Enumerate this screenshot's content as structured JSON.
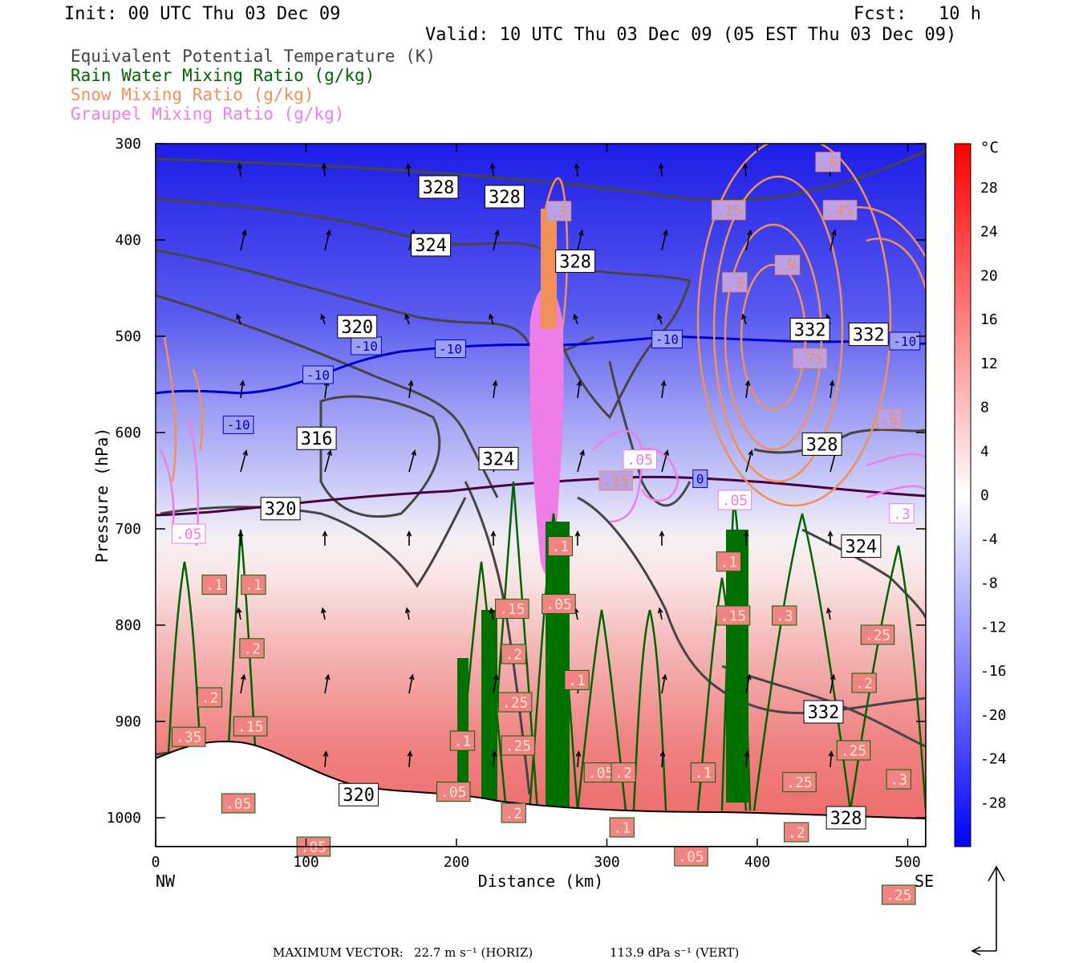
{
  "header": {
    "init": "Init: 00 UTC Thu 03 Dec 09",
    "fcst": "Fcst:   10 h",
    "valid": "Valid: 10 UTC Thu 03 Dec 09 (05 EST Thu 03 Dec 09)"
  },
  "legend": [
    {
      "text": "Equivalent Potential Temperature (K)",
      "color": "#444444"
    },
    {
      "text": "Rain Water Mixing Ratio (g/kg)",
      "color": "#006400"
    },
    {
      "text": "Snow Mixing Ratio (g/kg)",
      "color": "#f0905a"
    },
    {
      "text": "Graupel Mixing Ratio (g/kg)",
      "color": "#ee7ee8"
    }
  ],
  "chart_data": {
    "type": "heatmap",
    "xlabel": "Distance (km)",
    "ylabel": "Pressure (hPa)",
    "x_ticks": [
      0,
      100,
      200,
      300,
      400,
      500
    ],
    "y_ticks": [
      300,
      400,
      500,
      600,
      700,
      800,
      900,
      1000
    ],
    "xlim": [
      0,
      512
    ],
    "ylim": [
      1030,
      300
    ],
    "x_end_labels": {
      "left": "NW",
      "right": "SE"
    },
    "colorbar": {
      "unit": "°C",
      "labels": [
        28,
        24,
        20,
        16,
        12,
        8,
        4,
        0,
        -4,
        -8,
        -12,
        -16,
        -20,
        -24,
        -28
      ],
      "range": [
        -32,
        32
      ]
    },
    "isotherm_labels": [
      {
        "text": "-10",
        "x": 55,
        "p": 592
      },
      {
        "text": "-10",
        "x": 108,
        "p": 540
      },
      {
        "text": "-10",
        "x": 140,
        "p": 510
      },
      {
        "text": "-10",
        "x": 196,
        "p": 513
      },
      {
        "text": "-10",
        "x": 340,
        "p": 503
      },
      {
        "text": "-10",
        "x": 498,
        "p": 505
      },
      {
        "text": "0",
        "x": 362,
        "p": 648
      }
    ],
    "theta_e_labels": [
      {
        "text": "328",
        "x": 188,
        "p": 345
      },
      {
        "text": "328",
        "x": 232,
        "p": 355
      },
      {
        "text": "324",
        "x": 183,
        "p": 405
      },
      {
        "text": "320",
        "x": 134,
        "p": 490
      },
      {
        "text": "316",
        "x": 107,
        "p": 606
      },
      {
        "text": "320",
        "x": 83,
        "p": 679
      },
      {
        "text": "324",
        "x": 228,
        "p": 627
      },
      {
        "text": "324",
        "x": 469,
        "p": 718
      },
      {
        "text": "328",
        "x": 279,
        "p": 422
      },
      {
        "text": "332",
        "x": 435,
        "p": 493
      },
      {
        "text": "332",
        "x": 474,
        "p": 498
      },
      {
        "text": "328",
        "x": 443,
        "p": 612
      },
      {
        "text": "332",
        "x": 444,
        "p": 890
      },
      {
        "text": "320",
        "x": 135,
        "p": 976
      },
      {
        "text": "328",
        "x": 459,
        "p": 1000
      }
    ],
    "rain_labels": [
      {
        "text": ".1",
        "x": 39,
        "p": 758
      },
      {
        "text": ".1",
        "x": 65,
        "p": 758
      },
      {
        "text": ".2",
        "x": 64,
        "p": 824
      },
      {
        "text": ".2",
        "x": 36,
        "p": 875
      },
      {
        "text": ".15",
        "x": 63,
        "p": 905
      },
      {
        "text": ".35",
        "x": 22,
        "p": 916
      },
      {
        "text": ".05",
        "x": 55,
        "p": 985
      },
      {
        "text": ".05",
        "x": 105,
        "p": 1030
      },
      {
        "text": ".05",
        "x": 198,
        "p": 973
      },
      {
        "text": ".15",
        "x": 237,
        "p": 783
      },
      {
        "text": ".2",
        "x": 238,
        "p": 830
      },
      {
        "text": ".25",
        "x": 239,
        "p": 880
      },
      {
        "text": ".25",
        "x": 241,
        "p": 925
      },
      {
        "text": ".2",
        "x": 238,
        "p": 995
      },
      {
        "text": ".1",
        "x": 204,
        "p": 920
      },
      {
        "text": ".05",
        "x": 268,
        "p": 778
      },
      {
        "text": ".1",
        "x": 269,
        "p": 718
      },
      {
        "text": ".1",
        "x": 280,
        "p": 857
      },
      {
        "text": ".05",
        "x": 296,
        "p": 953
      },
      {
        "text": ".2",
        "x": 311,
        "p": 953
      },
      {
        "text": ".1",
        "x": 310,
        "p": 1010
      },
      {
        "text": ".05",
        "x": 356,
        "p": 1040
      },
      {
        "text": ".1",
        "x": 364,
        "p": 953
      },
      {
        "text": ".15",
        "x": 384,
        "p": 790
      },
      {
        "text": ".1",
        "x": 381,
        "p": 734
      },
      {
        "text": ".3",
        "x": 418,
        "p": 790
      },
      {
        "text": ".25",
        "x": 428,
        "p": 963
      },
      {
        "text": ".2",
        "x": 426,
        "p": 1015
      },
      {
        "text": ".25",
        "x": 480,
        "p": 810
      },
      {
        "text": ".2",
        "x": 471,
        "p": 860
      },
      {
        "text": ".25",
        "x": 464,
        "p": 930
      },
      {
        "text": ".3",
        "x": 494,
        "p": 960
      },
      {
        "text": ".25",
        "x": 494,
        "p": 1080
      }
    ],
    "snow_labels": [
      {
        "text": ".6",
        "x": 447,
        "p": 319
      },
      {
        "text": ".45",
        "x": 455,
        "p": 369
      },
      {
        "text": ".15",
        "x": 381,
        "p": 369
      },
      {
        "text": ".9",
        "x": 420,
        "p": 426
      },
      {
        "text": ".3",
        "x": 385,
        "p": 444
      },
      {
        "text": ".75",
        "x": 435,
        "p": 523
      },
      {
        "text": ".6",
        "x": 488,
        "p": 586
      },
      {
        "text": ".3",
        "x": 268,
        "p": 370
      },
      {
        "text": ".15",
        "x": 306,
        "p": 650
      }
    ],
    "graupel_labels": [
      {
        "text": ".05",
        "x": 322,
        "p": 628
      },
      {
        "text": ".05",
        "x": 385,
        "p": 670
      },
      {
        "text": ".05",
        "x": 22,
        "p": 705
      },
      {
        "text": ".3",
        "x": 496,
        "p": 684
      }
    ]
  },
  "footer": {
    "max_vector_label": "MAXIMUM VECTOR:",
    "horiz": "22.7 m s⁻¹ (HORIZ)",
    "vert": "113.9 dPa s⁻¹ (VERT)"
  }
}
